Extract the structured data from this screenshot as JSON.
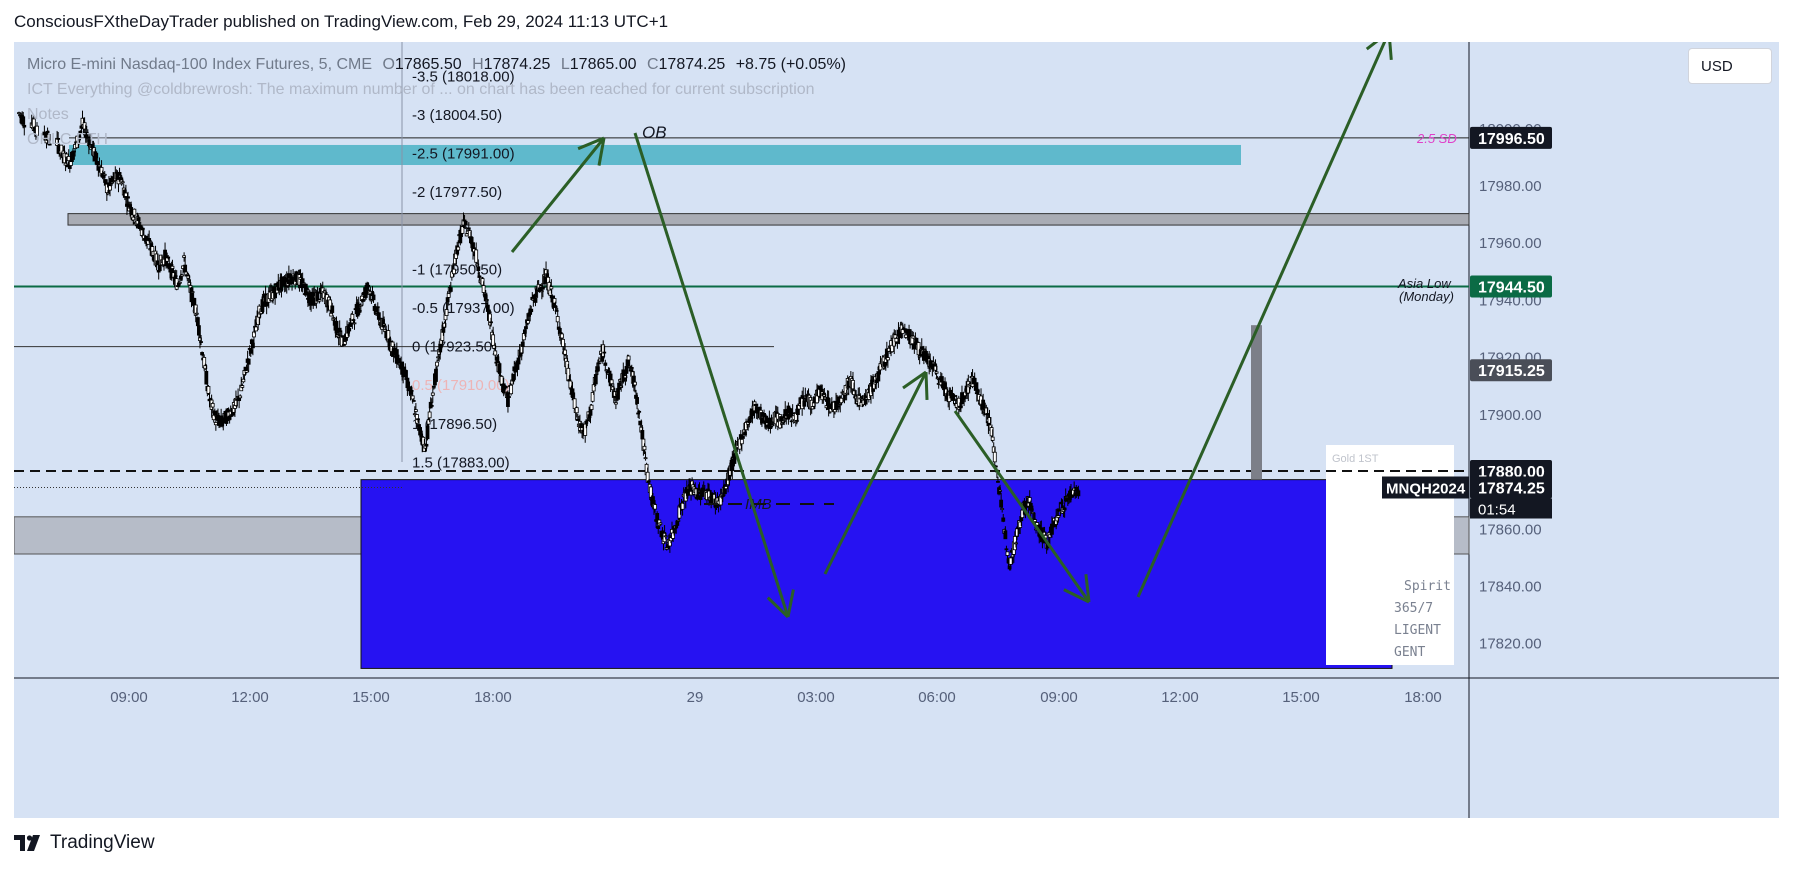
{
  "header": {
    "published_line": "ConsciousFXtheDayTrader published on TradingView.com, Feb 29, 2024 11:13 UTC+1"
  },
  "legend": {
    "symbol": "Micro E-mini Nasdaq-100 Index Futures, 5, CME",
    "o_label": "O",
    "o_value": "17865.50",
    "h_label": "H",
    "h_value": "17874.25",
    "l_label": "L",
    "l_value": "17865.00",
    "c_label": "C",
    "c_value": "17874.25",
    "change": "+8.75 (+0.05%)",
    "indicator_line": "ICT Everything @coldbrewrosh: The maximum number of ... on chart has been reached for current subscription",
    "notes_line": "Notes",
    "ohlc_line": "OHLC ETH"
  },
  "currency": "USD",
  "footer": {
    "brand": "TradingView"
  },
  "colors": {
    "background": "#d6e2f4",
    "candle": "#000000",
    "ob_zone": "#5fb9cc",
    "blue_zone": "#2612f2",
    "asia_low_line": "#0b6b45",
    "arrow": "#2b5e26",
    "sd_label": "#e040c8",
    "imb_box": "#7d6bbd"
  },
  "chart_data": {
    "type": "candlestick",
    "symbol": "MNQH2024",
    "timeframe": "5",
    "ylim": [
      17808,
      18030
    ],
    "x_ticks": [
      "09:00",
      "12:00",
      "15:00",
      "18:00",
      "29",
      "03:00",
      "06:00",
      "09:00",
      "12:00",
      "15:00",
      "18:00"
    ],
    "y_ticks": [
      17820,
      17840,
      17860,
      17880,
      17900,
      17920,
      17940,
      17960,
      17980,
      18000
    ],
    "y_tick_labels": [
      "17820.00",
      "17840.00",
      "17860.00",
      "17880.00",
      "17900.00",
      "17920.00",
      "17940.00",
      "17960.00",
      "17980.00",
      "18000.00"
    ],
    "last_price": 17874.25,
    "countdown": "01:54",
    "price_labels": [
      {
        "value": 17996.5,
        "text": "17996.50",
        "style": "dark"
      },
      {
        "value": 17944.5,
        "text": "17944.50",
        "style": "green"
      },
      {
        "value": 17915.25,
        "text": "17915.25",
        "style": "gray"
      },
      {
        "value": 17880.0,
        "text": "17880.00",
        "style": "dark"
      },
      {
        "value": 17874.25,
        "text": "17874.25",
        "style": "dark"
      }
    ],
    "close_path": [
      [
        0,
        18005
      ],
      [
        2,
        18002
      ],
      [
        4,
        17998
      ],
      [
        6,
        17995
      ],
      [
        7,
        17990
      ],
      [
        8,
        17988
      ],
      [
        9,
        17994
      ],
      [
        10,
        18001
      ],
      [
        11,
        17996
      ],
      [
        12,
        17990
      ],
      [
        13,
        17985
      ],
      [
        14,
        17978
      ],
      [
        15,
        17982
      ],
      [
        16,
        17983
      ],
      [
        17,
        17975
      ],
      [
        18,
        17970
      ],
      [
        19,
        17966
      ],
      [
        20,
        17961
      ],
      [
        21,
        17957
      ],
      [
        22,
        17952
      ],
      [
        23,
        17955
      ],
      [
        24,
        17950
      ],
      [
        25,
        17945
      ],
      [
        26,
        17953
      ],
      [
        27,
        17943
      ],
      [
        28,
        17935
      ],
      [
        29,
        17920
      ],
      [
        30,
        17905
      ],
      [
        31,
        17898
      ],
      [
        32,
        17897
      ],
      [
        33,
        17900
      ],
      [
        34,
        17902
      ],
      [
        35,
        17908
      ],
      [
        36,
        17918
      ],
      [
        37,
        17927
      ],
      [
        38,
        17937
      ],
      [
        39,
        17940
      ],
      [
        40,
        17942
      ],
      [
        41,
        17945
      ],
      [
        42,
        17946
      ],
      [
        43,
        17948
      ],
      [
        44,
        17947
      ],
      [
        45,
        17944
      ],
      [
        46,
        17940
      ],
      [
        47,
        17941
      ],
      [
        48,
        17942
      ],
      [
        49,
        17938
      ],
      [
        50,
        17930
      ],
      [
        51,
        17925
      ],
      [
        52,
        17930
      ],
      [
        53,
        17935
      ],
      [
        54,
        17940
      ],
      [
        55,
        17945
      ],
      [
        56,
        17938
      ],
      [
        57,
        17932
      ],
      [
        58,
        17928
      ],
      [
        59,
        17922
      ],
      [
        60,
        17918
      ],
      [
        61,
        17912
      ],
      [
        62,
        17905
      ],
      [
        63,
        17895
      ],
      [
        64,
        17888
      ],
      [
        65,
        17905
      ],
      [
        66,
        17918
      ],
      [
        67,
        17932
      ],
      [
        68,
        17945
      ],
      [
        69,
        17958
      ],
      [
        70,
        17966
      ],
      [
        71,
        17963
      ],
      [
        72,
        17955
      ],
      [
        73,
        17945
      ],
      [
        74,
        17935
      ],
      [
        75,
        17922
      ],
      [
        76,
        17912
      ],
      [
        77,
        17905
      ],
      [
        78,
        17914
      ],
      [
        79,
        17922
      ],
      [
        80,
        17931
      ],
      [
        81,
        17940
      ],
      [
        82,
        17944
      ],
      [
        83,
        17948
      ],
      [
        84,
        17941
      ],
      [
        85,
        17932
      ],
      [
        86,
        17920
      ],
      [
        87,
        17908
      ],
      [
        88,
        17898
      ],
      [
        89,
        17893
      ],
      [
        90,
        17901
      ],
      [
        91,
        17915
      ],
      [
        92,
        17922
      ],
      [
        93,
        17913
      ],
      [
        94,
        17905
      ],
      [
        95,
        17912
      ],
      [
        96,
        17918
      ],
      [
        97,
        17910
      ],
      [
        98,
        17895
      ],
      [
        99,
        17878
      ],
      [
        100,
        17867
      ],
      [
        101,
        17860
      ],
      [
        102,
        17854
      ],
      [
        103,
        17858
      ],
      [
        104,
        17866
      ],
      [
        105,
        17872
      ],
      [
        106,
        17874
      ],
      [
        107,
        17872
      ],
      [
        108,
        17873
      ],
      [
        109,
        17871
      ],
      [
        110,
        17869
      ],
      [
        111,
        17872
      ],
      [
        112,
        17880
      ],
      [
        113,
        17887
      ],
      [
        114,
        17893
      ],
      [
        115,
        17898
      ],
      [
        116,
        17903
      ],
      [
        117,
        17899
      ],
      [
        118,
        17896
      ],
      [
        119,
        17899
      ],
      [
        120,
        17897
      ],
      [
        121,
        17901
      ],
      [
        122,
        17898
      ],
      [
        123,
        17902
      ],
      [
        124,
        17906
      ],
      [
        125,
        17903
      ],
      [
        126,
        17908
      ],
      [
        127,
        17905
      ],
      [
        128,
        17902
      ],
      [
        129,
        17904
      ],
      [
        130,
        17908
      ],
      [
        131,
        17912
      ],
      [
        132,
        17906
      ],
      [
        133,
        17903
      ],
      [
        134,
        17908
      ],
      [
        135,
        17912
      ],
      [
        136,
        17917
      ],
      [
        137,
        17922
      ],
      [
        138,
        17926
      ],
      [
        139,
        17930
      ],
      [
        140,
        17928
      ],
      [
        141,
        17925
      ],
      [
        142,
        17922
      ],
      [
        143,
        17919
      ],
      [
        144,
        17916
      ],
      [
        145,
        17912
      ],
      [
        146,
        17908
      ],
      [
        147,
        17905
      ],
      [
        148,
        17903
      ],
      [
        149,
        17907
      ],
      [
        150,
        17912
      ],
      [
        151,
        17908
      ],
      [
        152,
        17902
      ],
      [
        153,
        17896
      ],
      [
        154,
        17880
      ],
      [
        155,
        17862
      ],
      [
        156,
        17848
      ],
      [
        157,
        17856
      ],
      [
        158,
        17866
      ],
      [
        159,
        17870
      ],
      [
        160,
        17862
      ],
      [
        161,
        17858
      ],
      [
        162,
        17855
      ],
      [
        163,
        17862
      ],
      [
        164,
        17866
      ],
      [
        165,
        17870
      ],
      [
        166,
        17873
      ],
      [
        167,
        17874
      ]
    ],
    "horizontal_lines": [
      {
        "value": 17996.5,
        "label": "2.5 SD"
      },
      {
        "value": 17944.5,
        "label": "Asia Low (Monday)"
      },
      {
        "value": 17880.0,
        "label": "",
        "dashed": true
      }
    ],
    "fib_levels": [
      {
        "text": "-3.5 (18018.00)",
        "value": 18018.0
      },
      {
        "text": "-3 (18004.50)",
        "value": 18004.5
      },
      {
        "text": "-2.5 (17991.00)",
        "value": 17991.0
      },
      {
        "text": "-2 (17977.50)",
        "value": 17977.5
      },
      {
        "text": "-1 (17950.50)",
        "value": 17950.5
      },
      {
        "text": "-0.5 (17937.00)",
        "value": 17937.0
      },
      {
        "text": "0 (17923.50)",
        "value": 17923.5
      },
      {
        "text": "0.5 (17910.00)",
        "value": 17910.0
      },
      {
        "text": "1 (17896.50)",
        "value": 17896.5
      },
      {
        "text": "1.5 (17883.00)",
        "value": 17883.0
      }
    ],
    "zones": [
      {
        "label": "OB",
        "top": 17994,
        "bottom": 17987
      },
      {
        "label": "",
        "top": 17970,
        "bottom": 17966
      },
      {
        "label": "",
        "top": 17864,
        "bottom": 17851
      },
      {
        "label": "IMB",
        "top": 17866,
        "bottom": 17860
      },
      {
        "label": "",
        "top": 17877,
        "bottom": 17811
      }
    ],
    "annotations": [
      "OB",
      "IMB",
      "2.5 SD",
      "Asia Low",
      "(Monday)",
      "Spirit",
      "365/7",
      "LIGENT",
      "GENT",
      "Gold 1ST"
    ]
  }
}
